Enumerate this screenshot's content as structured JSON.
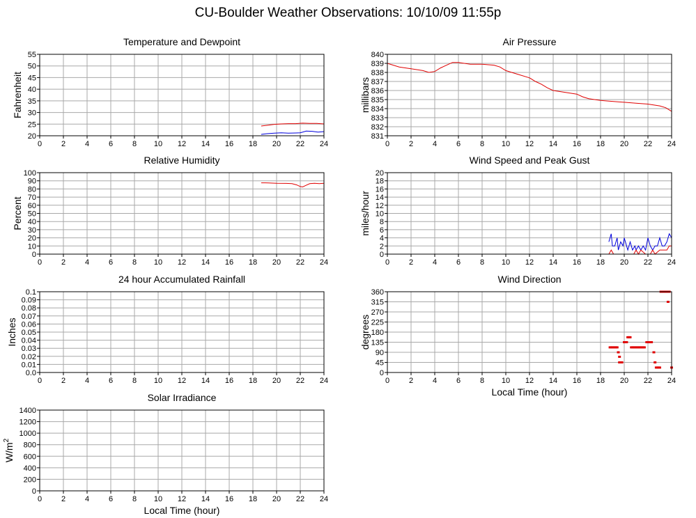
{
  "title": "CU-Boulder Weather Observations: 10/10/09 11:55p",
  "colors": {
    "red": "#e00000",
    "blue": "#0000dd",
    "grid": "#a8a8a8"
  },
  "chart_data": [
    {
      "id": "temperature",
      "type": "line",
      "title": "Temperature and Dewpoint",
      "ylabel": "Fahrenheit",
      "xlabel": "",
      "xlim": [
        0,
        24
      ],
      "ylim": [
        20,
        55
      ],
      "xticks": [
        0,
        2,
        4,
        6,
        8,
        10,
        12,
        14,
        16,
        18,
        20,
        22,
        24
      ],
      "yticks": [
        20,
        25,
        30,
        35,
        40,
        45,
        50,
        55
      ],
      "ytick_labels": [
        "20",
        "25",
        "30",
        "35",
        "40",
        "45",
        "50",
        "55"
      ],
      "grid": true,
      "series": [
        {
          "color": "#e00000",
          "x": [
            18.7,
            19.2,
            19.8,
            20.4,
            21.0,
            21.6,
            22.2,
            22.8,
            23.4,
            24.0
          ],
          "y": [
            24.2,
            24.5,
            24.9,
            25.1,
            25.2,
            25.2,
            25.4,
            25.3,
            25.3,
            25.1
          ]
        },
        {
          "color": "#0000dd",
          "x": [
            18.7,
            19.2,
            19.8,
            20.4,
            21.0,
            21.6,
            22.0,
            22.5,
            23.0,
            23.5,
            24.0
          ],
          "y": [
            20.6,
            20.9,
            21.1,
            21.3,
            21.1,
            21.2,
            21.3,
            22.0,
            21.9,
            21.6,
            21.8
          ]
        }
      ]
    },
    {
      "id": "pressure",
      "type": "line",
      "title": "Air Pressure",
      "ylabel": "millibars",
      "xlabel": "",
      "xlim": [
        0,
        24
      ],
      "ylim": [
        831,
        840
      ],
      "xticks": [
        0,
        2,
        4,
        6,
        8,
        10,
        12,
        14,
        16,
        18,
        20,
        22,
        24
      ],
      "yticks": [
        831,
        832,
        833,
        834,
        835,
        836,
        837,
        838,
        839,
        840
      ],
      "ytick_labels": [
        "831",
        "832",
        "833",
        "834",
        "835",
        "836",
        "837",
        "838",
        "839",
        "840"
      ],
      "grid": true,
      "series": [
        {
          "color": "#e00000",
          "x": [
            0,
            1,
            2,
            3,
            3.5,
            4,
            4.5,
            5,
            5.5,
            6,
            7,
            8,
            9,
            9.5,
            10,
            11,
            12,
            12.5,
            13,
            13.5,
            14,
            15,
            16,
            16.5,
            17,
            18,
            19,
            20,
            21,
            22,
            23,
            23.5,
            24
          ],
          "y": [
            839.0,
            838.6,
            838.4,
            838.2,
            838.0,
            838.1,
            838.5,
            838.8,
            839.1,
            839.1,
            838.9,
            838.9,
            838.8,
            838.6,
            838.2,
            837.8,
            837.4,
            837.0,
            836.7,
            836.3,
            836.0,
            835.8,
            835.6,
            835.3,
            835.1,
            834.9,
            834.8,
            834.7,
            834.6,
            834.5,
            834.3,
            834.1,
            833.7
          ]
        }
      ]
    },
    {
      "id": "humidity",
      "type": "line",
      "title": "Relative Humidity",
      "ylabel": "Percent",
      "xlabel": "",
      "xlim": [
        0,
        24
      ],
      "ylim": [
        0,
        100
      ],
      "xticks": [
        0,
        2,
        4,
        6,
        8,
        10,
        12,
        14,
        16,
        18,
        20,
        22,
        24
      ],
      "yticks": [
        0,
        10,
        20,
        30,
        40,
        50,
        60,
        70,
        80,
        90,
        100
      ],
      "ytick_labels": [
        "0",
        "10",
        "20",
        "30",
        "40",
        "50",
        "60",
        "70",
        "80",
        "90",
        "100"
      ],
      "grid": true,
      "series": [
        {
          "color": "#e00000",
          "x": [
            18.7,
            19.3,
            20.0,
            20.8,
            21.3,
            21.7,
            22.0,
            22.2,
            22.5,
            22.8,
            23.2,
            23.6,
            24.0
          ],
          "y": [
            87.5,
            87.4,
            87.0,
            86.8,
            86.5,
            85.0,
            83.0,
            82.5,
            84.5,
            86.5,
            87.0,
            86.5,
            87.0
          ]
        }
      ]
    },
    {
      "id": "wind",
      "type": "line",
      "title": "Wind Speed and Peak Gust",
      "ylabel": "miles/hour",
      "xlabel": "",
      "xlim": [
        0,
        24
      ],
      "ylim": [
        0,
        20
      ],
      "xticks": [
        0,
        2,
        4,
        6,
        8,
        10,
        12,
        14,
        16,
        18,
        20,
        22,
        24
      ],
      "yticks": [
        0,
        2,
        4,
        6,
        8,
        10,
        12,
        14,
        16,
        18,
        20
      ],
      "ytick_labels": [
        "0",
        "2",
        "4",
        "6",
        "8",
        "10",
        "12",
        "14",
        "16",
        "18",
        "20"
      ],
      "grid": true,
      "series": [
        {
          "color": "#0000dd",
          "x": [
            18.7,
            18.9,
            19.0,
            19.2,
            19.4,
            19.5,
            19.7,
            19.9,
            20.0,
            20.2,
            20.3,
            20.5,
            20.7,
            20.9,
            21.0,
            21.2,
            21.4,
            21.6,
            21.8,
            22.0,
            22.2,
            22.4,
            22.6,
            22.8,
            23.0,
            23.2,
            23.4,
            23.6,
            23.8,
            24.0
          ],
          "y": [
            3,
            5,
            2,
            2,
            4,
            1,
            3,
            2,
            4,
            2,
            1,
            3,
            1,
            2,
            1,
            2,
            1,
            2,
            1,
            4,
            2,
            1,
            2,
            2,
            4,
            2,
            2,
            3,
            5,
            4
          ]
        },
        {
          "color": "#e00000",
          "x": [
            18.7,
            18.9,
            19.1,
            19.3,
            19.6,
            20.0,
            20.4,
            20.8,
            21.0,
            21.2,
            21.4,
            21.8,
            22.2,
            22.4,
            22.6,
            23.0,
            23.4,
            23.6,
            23.8,
            24.0
          ],
          "y": [
            0,
            1,
            0,
            0,
            0,
            0,
            0,
            0,
            1,
            0,
            1,
            0,
            0,
            1,
            0,
            1,
            1,
            1,
            2,
            2
          ]
        }
      ]
    },
    {
      "id": "rainfall",
      "type": "line",
      "title": "24 hour Accumulated Rainfall",
      "ylabel": "Inches",
      "xlabel": "",
      "xlim": [
        0,
        24
      ],
      "ylim": [
        0,
        0.1
      ],
      "xticks": [
        0,
        2,
        4,
        6,
        8,
        10,
        12,
        14,
        16,
        18,
        20,
        22,
        24
      ],
      "yticks": [
        0,
        0.01,
        0.02,
        0.03,
        0.04,
        0.05,
        0.06,
        0.07,
        0.08,
        0.09,
        0.1
      ],
      "ytick_labels": [
        "0.0",
        "0.01",
        "0.02",
        "0.03",
        "0.04",
        "0.05",
        "0.06",
        "0.07",
        "0.08",
        "0.09",
        "0.1"
      ],
      "grid": true,
      "series": [
        {
          "color": "#e00000",
          "x": [
            0,
            24
          ],
          "y": [
            0,
            0
          ]
        }
      ]
    },
    {
      "id": "direction",
      "type": "scatter",
      "title": "Wind Direction",
      "ylabel": "degrees",
      "xlabel": "Local Time (hour)",
      "xlim": [
        0,
        24
      ],
      "ylim": [
        0,
        360
      ],
      "xticks": [
        0,
        2,
        4,
        6,
        8,
        10,
        12,
        14,
        16,
        18,
        20,
        22,
        24
      ],
      "yticks": [
        0,
        45,
        90,
        135,
        180,
        225,
        270,
        315,
        360
      ],
      "ytick_labels": [
        "0",
        "45",
        "90",
        "135",
        "180",
        "225",
        "270",
        "315",
        "360"
      ],
      "grid": true,
      "series": [
        {
          "color": "#e00000",
          "x": [
            18.8,
            18.9,
            19.0,
            19.1,
            19.2,
            19.3,
            19.4,
            19.5,
            19.6,
            19.6,
            19.7,
            19.8,
            20.0,
            20.1,
            20.2,
            20.3,
            20.4,
            20.5,
            20.6,
            20.7,
            20.8,
            20.9,
            21.0,
            21.1,
            21.2,
            21.3,
            21.4,
            21.5,
            21.6,
            21.7,
            21.9,
            22.0,
            22.1,
            22.2,
            22.3,
            22.5,
            22.6,
            22.7,
            22.8,
            22.9,
            23.0,
            23.1,
            23.3,
            23.4,
            23.5,
            23.6,
            23.7,
            23.8,
            24.0
          ],
          "y": [
            112,
            112,
            112,
            112,
            112,
            112,
            112,
            90,
            70,
            45,
            45,
            45,
            135,
            135,
            135,
            157,
            157,
            157,
            112,
            112,
            112,
            112,
            112,
            112,
            112,
            112,
            112,
            112,
            112,
            112,
            135,
            135,
            135,
            135,
            135,
            90,
            45,
            22,
            22,
            22,
            22,
            360,
            360,
            360,
            360,
            360,
            315,
            360,
            22
          ]
        }
      ]
    },
    {
      "id": "solar",
      "type": "line",
      "title": "Solar Irradiance",
      "ylabel": "W/m",
      "ylabel_sup": "2",
      "xlabel": "Local Time (hour)",
      "xlim": [
        0,
        24
      ],
      "ylim": [
        0,
        1400
      ],
      "xticks": [
        0,
        2,
        4,
        6,
        8,
        10,
        12,
        14,
        16,
        18,
        20,
        22,
        24
      ],
      "yticks": [
        0,
        200,
        400,
        600,
        800,
        1000,
        1200,
        1400
      ],
      "ytick_labels": [
        "0",
        "200",
        "400",
        "600",
        "800",
        "1000",
        "1200",
        "1400"
      ],
      "grid": true,
      "series": [
        {
          "color": "#e00000",
          "x": [
            18.7,
            24
          ],
          "y": [
            0,
            0
          ]
        }
      ]
    }
  ]
}
